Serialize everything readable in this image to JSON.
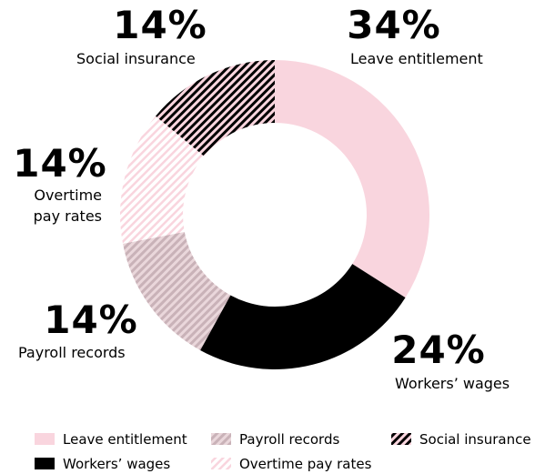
{
  "chart_data": {
    "type": "donut",
    "categories": [
      "Leave entitlement",
      "Workers’ wages",
      "Payroll records",
      "Overtime pay rates",
      "Social insurance"
    ],
    "values": [
      34,
      24,
      14,
      14,
      14
    ],
    "value_labels": [
      "34%",
      "24%",
      "14%",
      "14%",
      "14%"
    ],
    "colors": [
      "#f9d5de",
      "#000000",
      "#c9b2b8",
      "#f9d5de",
      "#000000"
    ]
  }
}
